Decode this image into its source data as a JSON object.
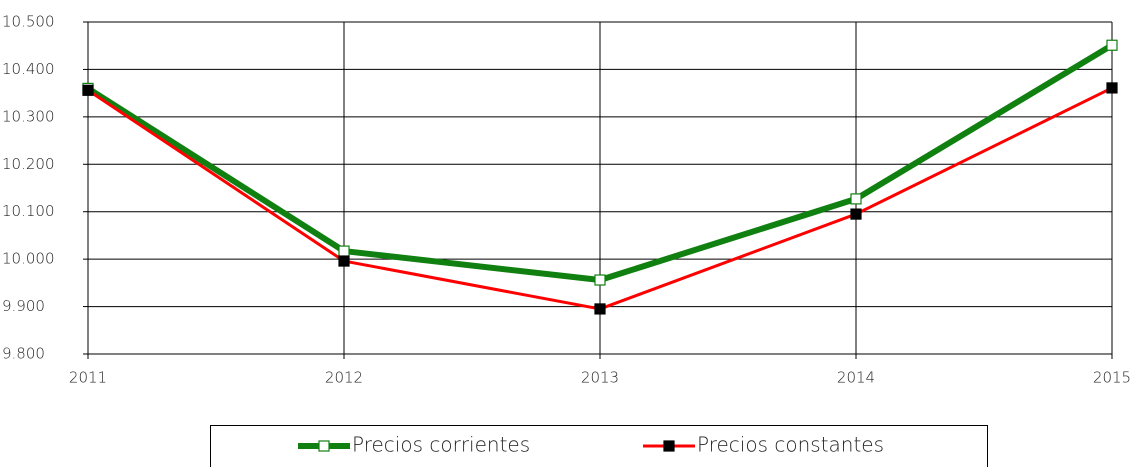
{
  "chart_data": {
    "type": "line",
    "categories": [
      "2011",
      "2012",
      "2013",
      "2014",
      "2015"
    ],
    "series": [
      {
        "name": "Precios corrientes",
        "color": "#108010",
        "values": [
          10360,
          10017,
          9956,
          10127,
          10451
        ]
      },
      {
        "name": "Precios constantes",
        "color": "#ff0000",
        "values": [
          10356,
          9996,
          9895,
          10095,
          10361
        ]
      }
    ],
    "ylim": [
      9800,
      10500
    ],
    "yticks": [
      {
        "value": 9800,
        "label": "9.800"
      },
      {
        "value": 9900,
        "label": "9.900"
      },
      {
        "value": 10000,
        "label": "10.000"
      },
      {
        "value": 10100,
        "label": "10.100"
      },
      {
        "value": 10200,
        "label": "10.200"
      },
      {
        "value": 10300,
        "label": "10.300"
      },
      {
        "value": 10400,
        "label": "10.400"
      },
      {
        "value": 10500,
        "label": "10.500"
      }
    ],
    "grid": true,
    "legend": "bottom"
  }
}
